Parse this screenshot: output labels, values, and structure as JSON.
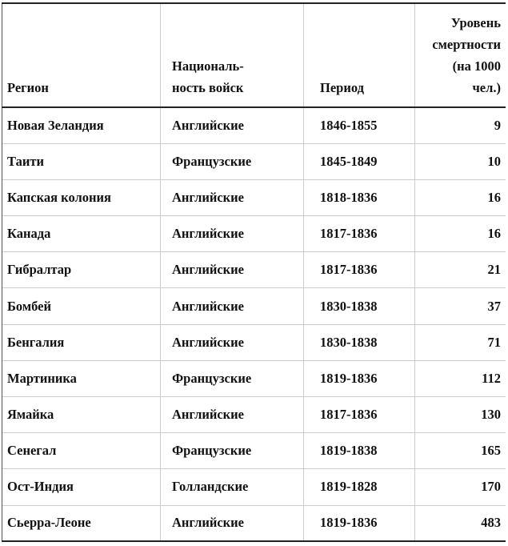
{
  "headers": [
    "Регион",
    "Националь-\nность войск",
    "Период",
    "Уровень смертности (на 1000 чел.)"
  ],
  "header_lines": {
    "nationality": [
      "Националь-",
      "ность войск"
    ],
    "mortality": [
      "Уровень",
      "смертности",
      "(на 1000",
      "чел.)"
    ]
  },
  "rows": [
    {
      "region": "Новая Зеландия",
      "troops": "Английские",
      "period": "1846-1855",
      "rate": "9"
    },
    {
      "region": "Таити",
      "troops": "Французские",
      "period": "1845-1849",
      "rate": "10"
    },
    {
      "region": "Капская колония",
      "troops": "Английские",
      "period": "1818-1836",
      "rate": "16"
    },
    {
      "region": "Канада",
      "troops": "Английские",
      "period": "1817-1836",
      "rate": "16"
    },
    {
      "region": "Гибралтар",
      "troops": "Английские",
      "period": "1817-1836",
      "rate": "21"
    },
    {
      "region": "Бомбей",
      "troops": "Английские",
      "period": "1830-1838",
      "rate": "37"
    },
    {
      "region": "Бенгалия",
      "troops": "Английские",
      "period": "1830-1838",
      "rate": "71"
    },
    {
      "region": "Мартиника",
      "troops": "Французские",
      "period": "1819-1836",
      "rate": "112"
    },
    {
      "region": "Ямайка",
      "troops": "Английские",
      "period": "1817-1836",
      "rate": "130"
    },
    {
      "region": "Сенегал",
      "troops": "Французские",
      "period": "1819-1838",
      "rate": "165"
    },
    {
      "region": "Ост-Индия",
      "troops": "Голландские",
      "period": "1819-1828",
      "rate": "170"
    },
    {
      "region": "Сьерра-Леоне",
      "troops": "Английские",
      "period": "1819-1836",
      "rate": "483"
    }
  ]
}
